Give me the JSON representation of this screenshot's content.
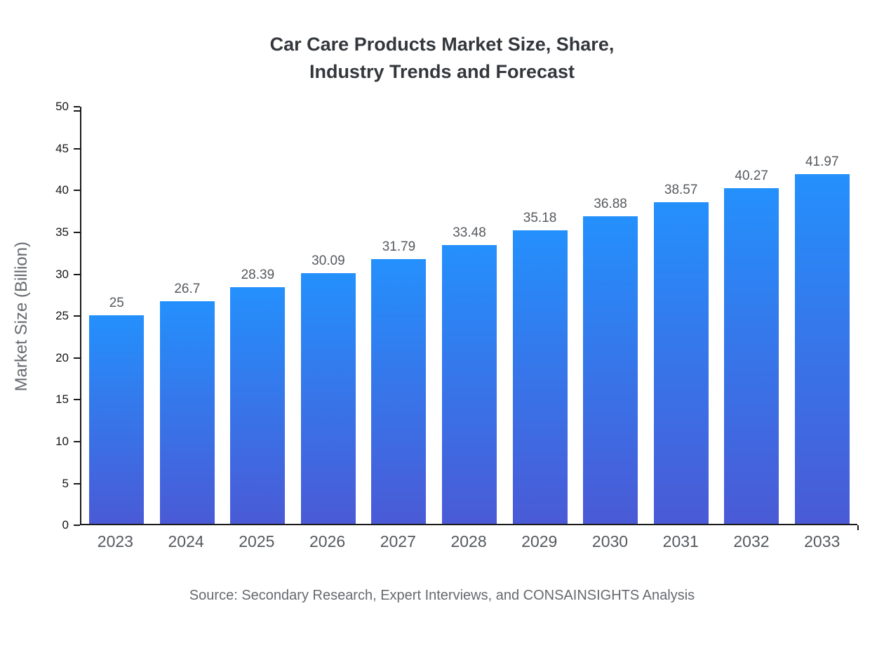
{
  "chart_data": {
    "type": "bar",
    "title": "Car Care Products Market Size, Share,\nIndustry Trends and Forecast",
    "categories": [
      "2023",
      "2024",
      "2025",
      "2026",
      "2027",
      "2028",
      "2029",
      "2030",
      "2031",
      "2032",
      "2033"
    ],
    "values": [
      25,
      26.7,
      28.39,
      30.09,
      31.79,
      33.48,
      35.18,
      36.88,
      38.57,
      40.27,
      41.97
    ],
    "labels": [
      "25",
      "26.7",
      "28.39",
      "30.09",
      "31.79",
      "33.48",
      "35.18",
      "36.88",
      "38.57",
      "40.27",
      "41.97"
    ],
    "xlabel": "",
    "ylabel": "Market Size (Billion)",
    "ylim": [
      0,
      50
    ],
    "ytick_step": 5,
    "grid": false,
    "legend": false,
    "bar_color_top": "#2490fc",
    "bar_color_bottom": "#4a5ad6",
    "axis_color": "#1a1a1a",
    "source": "Source: Secondary Research, Expert Interviews, and CONSAINSIGHTS Analysis"
  }
}
